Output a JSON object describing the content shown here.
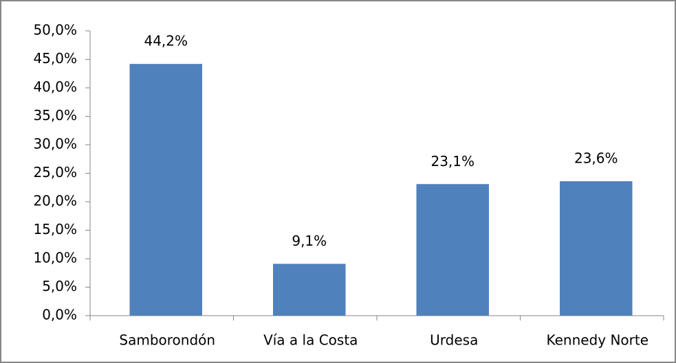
{
  "chart_data": {
    "type": "bar",
    "categories": [
      "Samborondón",
      "Vía a la Costa",
      "Urdesa",
      "Kennedy Norte"
    ],
    "values": [
      44.2,
      9.1,
      23.1,
      23.6
    ],
    "value_labels": [
      "44,2%",
      "9,1%",
      "23,1%",
      "23,6%"
    ],
    "color": "#4f81bd",
    "ylim": [
      0,
      50
    ],
    "yticks": [
      {
        "value": 0,
        "label": "0,0%"
      },
      {
        "value": 5,
        "label": "5,0%"
      },
      {
        "value": 10,
        "label": "10,0%"
      },
      {
        "value": 15,
        "label": "15,0%"
      },
      {
        "value": 20,
        "label": "20,0%"
      },
      {
        "value": 25,
        "label": "25,0%"
      },
      {
        "value": 30,
        "label": "30,0%"
      },
      {
        "value": 35,
        "label": "35,0%"
      },
      {
        "value": 40,
        "label": "40,0%"
      },
      {
        "value": 45,
        "label": "45,0%"
      },
      {
        "value": 50,
        "label": "50,0%"
      }
    ],
    "grid": false
  }
}
